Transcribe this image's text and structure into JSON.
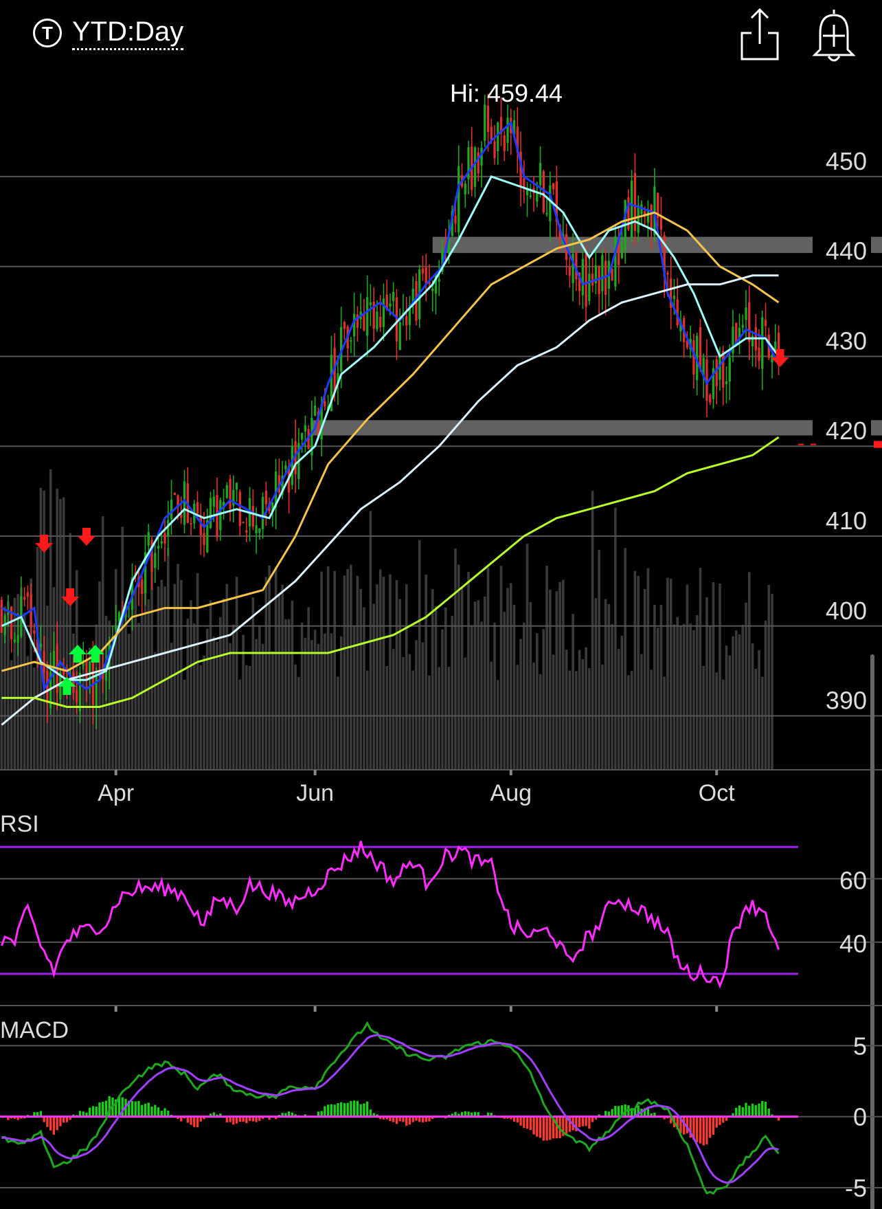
{
  "header": {
    "range_label": "YTD:Day",
    "ticker_icon_glyph": "T",
    "share_icon": "share-icon",
    "alert_icon": "add-alert-bell-icon"
  },
  "chart_data": [
    {
      "type": "candlestick",
      "panel": "price",
      "annotation": "Hi: 459.44",
      "high_value": 459.44,
      "y_ticks": [
        450,
        440,
        430,
        420,
        410,
        400,
        390
      ],
      "ylim": [
        384,
        462
      ],
      "x_ticks": [
        "Apr",
        "Jun",
        "Aug",
        "Oct"
      ],
      "x_tick_days": [
        35,
        96,
        156,
        219
      ],
      "n_days": 245,
      "support_resistance_bands": [
        [
          441.5,
          443.3
        ],
        [
          421.2,
          422.9
        ]
      ],
      "moving_averages": [
        {
          "color": "#1e3cff",
          "points": [
            [
              0,
              402
            ],
            [
              6,
              401
            ],
            [
              10,
              402
            ],
            [
              13,
              393
            ],
            [
              18,
              396
            ],
            [
              22,
              394
            ],
            [
              26,
              393
            ],
            [
              30,
              394
            ],
            [
              35,
              399
            ],
            [
              42,
              405
            ],
            [
              50,
              412
            ],
            [
              56,
              414
            ],
            [
              62,
              411
            ],
            [
              70,
              414
            ],
            [
              80,
              412
            ],
            [
              90,
              419
            ],
            [
              96,
              422
            ],
            [
              100,
              427
            ],
            [
              108,
              434
            ],
            [
              116,
              436
            ],
            [
              122,
              434
            ],
            [
              130,
              438
            ],
            [
              135,
              440
            ],
            [
              140,
              449
            ],
            [
              150,
              454
            ],
            [
              156,
              456
            ],
            [
              160,
              450
            ],
            [
              168,
              448
            ],
            [
              172,
              443
            ],
            [
              178,
              438
            ],
            [
              186,
              439
            ],
            [
              192,
              447
            ],
            [
              200,
              446
            ],
            [
              204,
              437
            ],
            [
              210,
              432
            ],
            [
              216,
              427
            ],
            [
              222,
              430
            ],
            [
              228,
              433
            ],
            [
              234,
              432
            ],
            [
              238,
              429
            ]
          ]
        },
        {
          "color": "#9ffcff",
          "points": [
            [
              0,
              400
            ],
            [
              6,
              401
            ],
            [
              12,
              396
            ],
            [
              20,
              394
            ],
            [
              26,
              394
            ],
            [
              32,
              395
            ],
            [
              40,
              405
            ],
            [
              48,
              410
            ],
            [
              56,
              413
            ],
            [
              62,
              412
            ],
            [
              72,
              413
            ],
            [
              82,
              412
            ],
            [
              90,
              418
            ],
            [
              96,
              420
            ],
            [
              104,
              428
            ],
            [
              114,
              431
            ],
            [
              124,
              435
            ],
            [
              132,
              438
            ],
            [
              140,
              443
            ],
            [
              150,
              450
            ],
            [
              158,
              449
            ],
            [
              166,
              448
            ],
            [
              172,
              446
            ],
            [
              180,
              441
            ],
            [
              186,
              444
            ],
            [
              194,
              445
            ],
            [
              200,
              444
            ],
            [
              206,
              441
            ],
            [
              212,
              437
            ],
            [
              220,
              430
            ],
            [
              228,
              432
            ],
            [
              234,
              432
            ],
            [
              238,
              430
            ]
          ]
        },
        {
          "color": "#f7c44a",
          "points": [
            [
              0,
              395
            ],
            [
              10,
              396
            ],
            [
              20,
              395
            ],
            [
              30,
              397
            ],
            [
              40,
              401
            ],
            [
              50,
              402
            ],
            [
              60,
              402
            ],
            [
              70,
              403
            ],
            [
              80,
              404
            ],
            [
              90,
              410
            ],
            [
              100,
              418
            ],
            [
              112,
              423
            ],
            [
              126,
              428
            ],
            [
              138,
              433
            ],
            [
              150,
              438
            ],
            [
              160,
              440
            ],
            [
              170,
              442
            ],
            [
              180,
              443
            ],
            [
              190,
              445
            ],
            [
              200,
              446
            ],
            [
              210,
              444
            ],
            [
              220,
              440
            ],
            [
              230,
              438
            ],
            [
              238,
              436
            ]
          ]
        },
        {
          "color": "#dcf3ff",
          "points": [
            [
              0,
              389
            ],
            [
              10,
              392
            ],
            [
              20,
              394
            ],
            [
              30,
              395
            ],
            [
              40,
              396
            ],
            [
              50,
              397
            ],
            [
              60,
              398
            ],
            [
              70,
              399
            ],
            [
              80,
              402
            ],
            [
              90,
              405
            ],
            [
              100,
              409
            ],
            [
              110,
              413
            ],
            [
              122,
              416
            ],
            [
              134,
              420
            ],
            [
              146,
              425
            ],
            [
              158,
              429
            ],
            [
              170,
              431
            ],
            [
              180,
              434
            ],
            [
              190,
              436
            ],
            [
              200,
              437
            ],
            [
              210,
              438
            ],
            [
              220,
              438
            ],
            [
              230,
              439
            ],
            [
              238,
              439
            ]
          ]
        },
        {
          "color": "#b7ff2a",
          "points": [
            [
              0,
              392
            ],
            [
              10,
              392
            ],
            [
              20,
              391
            ],
            [
              30,
              391
            ],
            [
              40,
              392
            ],
            [
              50,
              394
            ],
            [
              60,
              396
            ],
            [
              70,
              397
            ],
            [
              80,
              397
            ],
            [
              90,
              397
            ],
            [
              100,
              397
            ],
            [
              110,
              398
            ],
            [
              120,
              399
            ],
            [
              130,
              401
            ],
            [
              140,
              404
            ],
            [
              150,
              407
            ],
            [
              160,
              410
            ],
            [
              170,
              412
            ],
            [
              180,
              413
            ],
            [
              190,
              414
            ],
            [
              200,
              415
            ],
            [
              210,
              417
            ],
            [
              220,
              418
            ],
            [
              230,
              419
            ],
            [
              238,
              421
            ]
          ]
        }
      ],
      "buy_signal_days": [
        20,
        22,
        27
      ],
      "sell_signal_days": [
        13,
        21,
        26,
        238
      ]
    },
    {
      "type": "line",
      "panel": "RSI",
      "title": "RSI",
      "y_ticks": [
        60,
        40
      ],
      "ylim": [
        20,
        77
      ],
      "reference_lines": [
        70,
        30
      ],
      "color": "#ff2dff",
      "series": [
        [
          0,
          41
        ],
        [
          4,
          40
        ],
        [
          8,
          50
        ],
        [
          12,
          39
        ],
        [
          16,
          31
        ],
        [
          20,
          41
        ],
        [
          26,
          44
        ],
        [
          32,
          46
        ],
        [
          36,
          54
        ],
        [
          42,
          57
        ],
        [
          50,
          57
        ],
        [
          56,
          55
        ],
        [
          62,
          45
        ],
        [
          66,
          54
        ],
        [
          72,
          51
        ],
        [
          76,
          58
        ],
        [
          82,
          56
        ],
        [
          88,
          52
        ],
        [
          96,
          57
        ],
        [
          102,
          63
        ],
        [
          110,
          70
        ],
        [
          116,
          64
        ],
        [
          120,
          59
        ],
        [
          126,
          66
        ],
        [
          130,
          59
        ],
        [
          136,
          67
        ],
        [
          140,
          69
        ],
        [
          146,
          65
        ],
        [
          150,
          64
        ],
        [
          156,
          45
        ],
        [
          162,
          42
        ],
        [
          168,
          44
        ],
        [
          174,
          33
        ],
        [
          178,
          40
        ],
        [
          182,
          44
        ],
        [
          188,
          54
        ],
        [
          196,
          50
        ],
        [
          200,
          47
        ],
        [
          204,
          42
        ],
        [
          208,
          32
        ],
        [
          212,
          30
        ],
        [
          216,
          30
        ],
        [
          220,
          27
        ],
        [
          224,
          42
        ],
        [
          228,
          52
        ],
        [
          234,
          50
        ],
        [
          238,
          36
        ]
      ]
    },
    {
      "type": "line",
      "panel": "MACD",
      "title": "MACD",
      "y_ticks": [
        5,
        0,
        -5
      ],
      "ylim": [
        -6.5,
        7
      ],
      "macd_color": "#1fa81f",
      "signal_color": "#a040ff",
      "histogram_up_color": "#19d119",
      "histogram_down_color": "#ff3b30",
      "zero_line_color": "#ff33ff",
      "macd": [
        [
          0,
          -1.5
        ],
        [
          6,
          -2
        ],
        [
          12,
          -1.2
        ],
        [
          16,
          -3.5
        ],
        [
          20,
          -3.2
        ],
        [
          26,
          -2.2
        ],
        [
          30,
          -1
        ],
        [
          34,
          0.8
        ],
        [
          40,
          2.5
        ],
        [
          46,
          3.5
        ],
        [
          50,
          3.8
        ],
        [
          56,
          3
        ],
        [
          60,
          2
        ],
        [
          66,
          3
        ],
        [
          72,
          1.8
        ],
        [
          78,
          1.5
        ],
        [
          84,
          1.4
        ],
        [
          88,
          2.1
        ],
        [
          96,
          2.1
        ],
        [
          102,
          4
        ],
        [
          108,
          5.5
        ],
        [
          112,
          6.5
        ],
        [
          116,
          5.5
        ],
        [
          124,
          4.5
        ],
        [
          130,
          4
        ],
        [
          136,
          4.2
        ],
        [
          142,
          5
        ],
        [
          150,
          5.3
        ],
        [
          156,
          5
        ],
        [
          162,
          3
        ],
        [
          168,
          0
        ],
        [
          174,
          -1.5
        ],
        [
          180,
          -2.2
        ],
        [
          186,
          -1
        ],
        [
          192,
          0.5
        ],
        [
          198,
          1.2
        ],
        [
          204,
          0.5
        ],
        [
          210,
          -2
        ],
        [
          216,
          -5.5
        ],
        [
          222,
          -4.8
        ],
        [
          228,
          -3
        ],
        [
          234,
          -1.5
        ],
        [
          238,
          -2.5
        ]
      ]
    }
  ]
}
